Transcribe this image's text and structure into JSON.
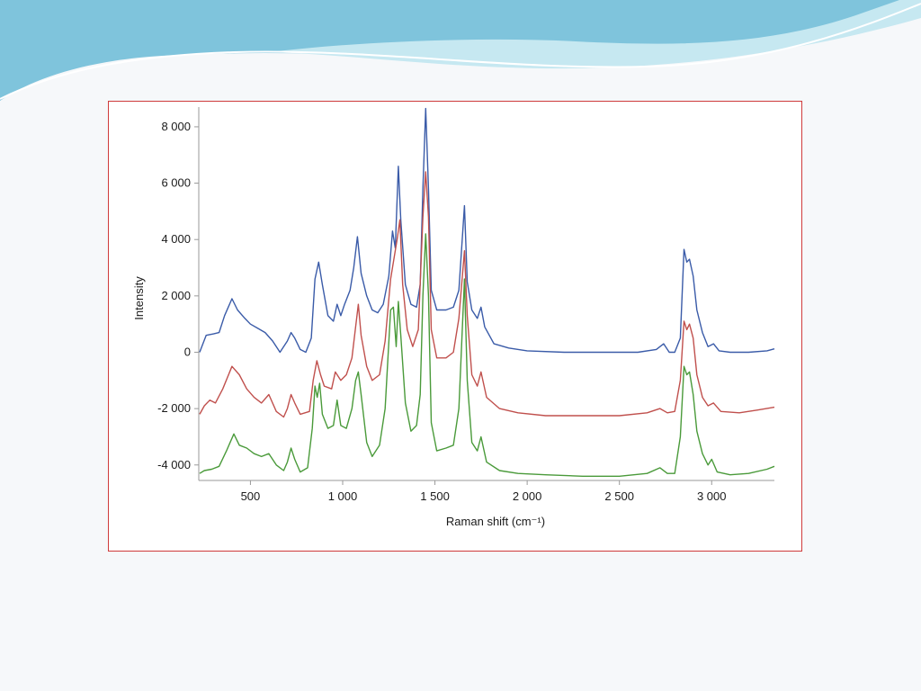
{
  "slide": {
    "colors": {
      "background": "#f6f8fa",
      "wave_dark": "#7fc4dc",
      "wave_light": "#c6e8f1",
      "frame_border": "#cf3b3b"
    }
  },
  "chart_data": {
    "type": "line",
    "title": "",
    "xlabel": "Raman shift (cm⁻¹)",
    "ylabel": "Intensity",
    "xlim": [
      220,
      3340
    ],
    "ylim": [
      -4550,
      8700
    ],
    "x_ticks": [
      500,
      1000,
      1500,
      2000,
      2500,
      3000
    ],
    "x_tick_labels": [
      "500",
      "1 000",
      "1 500",
      "2 000",
      "2 500",
      "3 000"
    ],
    "y_ticks": [
      -4000,
      -2000,
      0,
      2000,
      4000,
      6000,
      8000
    ],
    "y_tick_labels": [
      "-4 000",
      "-2 000",
      "0",
      "2 000",
      "4 000",
      "6 000",
      "8 000"
    ],
    "grid": false,
    "legend": "none",
    "series": [
      {
        "color": "#3a5ba8",
        "points": [
          [
            225,
            0
          ],
          [
            260,
            600
          ],
          [
            300,
            650
          ],
          [
            330,
            700
          ],
          [
            360,
            1300
          ],
          [
            400,
            1900
          ],
          [
            430,
            1500
          ],
          [
            470,
            1200
          ],
          [
            500,
            1000
          ],
          [
            540,
            850
          ],
          [
            580,
            700
          ],
          [
            620,
            400
          ],
          [
            660,
            0
          ],
          [
            700,
            400
          ],
          [
            720,
            700
          ],
          [
            740,
            500
          ],
          [
            770,
            100
          ],
          [
            800,
            0
          ],
          [
            830,
            500
          ],
          [
            850,
            2600
          ],
          [
            870,
            3200
          ],
          [
            890,
            2400
          ],
          [
            920,
            1300
          ],
          [
            950,
            1100
          ],
          [
            970,
            1700
          ],
          [
            990,
            1300
          ],
          [
            1010,
            1700
          ],
          [
            1040,
            2200
          ],
          [
            1060,
            3000
          ],
          [
            1080,
            4100
          ],
          [
            1100,
            2800
          ],
          [
            1130,
            2000
          ],
          [
            1160,
            1500
          ],
          [
            1190,
            1400
          ],
          [
            1220,
            1700
          ],
          [
            1250,
            2700
          ],
          [
            1270,
            4300
          ],
          [
            1285,
            3700
          ],
          [
            1302,
            6600
          ],
          [
            1315,
            4700
          ],
          [
            1340,
            2400
          ],
          [
            1370,
            1700
          ],
          [
            1400,
            1600
          ],
          [
            1420,
            2400
          ],
          [
            1435,
            5800
          ],
          [
            1450,
            8650
          ],
          [
            1465,
            5800
          ],
          [
            1480,
            2200
          ],
          [
            1510,
            1500
          ],
          [
            1560,
            1500
          ],
          [
            1600,
            1600
          ],
          [
            1630,
            2200
          ],
          [
            1660,
            5200
          ],
          [
            1675,
            2500
          ],
          [
            1700,
            1500
          ],
          [
            1730,
            1200
          ],
          [
            1750,
            1600
          ],
          [
            1770,
            900
          ],
          [
            1820,
            300
          ],
          [
            1900,
            150
          ],
          [
            2000,
            50
          ],
          [
            2200,
            0
          ],
          [
            2400,
            0
          ],
          [
            2600,
            0
          ],
          [
            2700,
            100
          ],
          [
            2740,
            300
          ],
          [
            2770,
            0
          ],
          [
            2800,
            0
          ],
          [
            2830,
            500
          ],
          [
            2850,
            3650
          ],
          [
            2865,
            3200
          ],
          [
            2880,
            3300
          ],
          [
            2900,
            2700
          ],
          [
            2920,
            1500
          ],
          [
            2950,
            700
          ],
          [
            2980,
            200
          ],
          [
            3010,
            300
          ],
          [
            3040,
            50
          ],
          [
            3100,
            0
          ],
          [
            3200,
            0
          ],
          [
            3300,
            50
          ],
          [
            3340,
            120
          ]
        ]
      },
      {
        "color": "#c0504d",
        "points": [
          [
            225,
            -2200
          ],
          [
            250,
            -1900
          ],
          [
            280,
            -1700
          ],
          [
            310,
            -1800
          ],
          [
            350,
            -1300
          ],
          [
            400,
            -500
          ],
          [
            440,
            -800
          ],
          [
            480,
            -1300
          ],
          [
            520,
            -1600
          ],
          [
            560,
            -1800
          ],
          [
            600,
            -1500
          ],
          [
            640,
            -2100
          ],
          [
            680,
            -2300
          ],
          [
            700,
            -2000
          ],
          [
            720,
            -1500
          ],
          [
            740,
            -1800
          ],
          [
            770,
            -2200
          ],
          [
            820,
            -2100
          ],
          [
            840,
            -1000
          ],
          [
            860,
            -300
          ],
          [
            880,
            -800
          ],
          [
            900,
            -1200
          ],
          [
            940,
            -1300
          ],
          [
            960,
            -700
          ],
          [
            990,
            -1000
          ],
          [
            1020,
            -800
          ],
          [
            1050,
            -200
          ],
          [
            1070,
            900
          ],
          [
            1085,
            1700
          ],
          [
            1100,
            600
          ],
          [
            1130,
            -500
          ],
          [
            1160,
            -1000
          ],
          [
            1200,
            -800
          ],
          [
            1230,
            400
          ],
          [
            1260,
            2600
          ],
          [
            1275,
            3200
          ],
          [
            1295,
            4000
          ],
          [
            1310,
            4700
          ],
          [
            1325,
            2400
          ],
          [
            1350,
            800
          ],
          [
            1380,
            200
          ],
          [
            1410,
            800
          ],
          [
            1435,
            4800
          ],
          [
            1450,
            6400
          ],
          [
            1465,
            4800
          ],
          [
            1480,
            800
          ],
          [
            1510,
            -200
          ],
          [
            1560,
            -200
          ],
          [
            1600,
            0
          ],
          [
            1630,
            1200
          ],
          [
            1660,
            3600
          ],
          [
            1675,
            1300
          ],
          [
            1700,
            -800
          ],
          [
            1730,
            -1200
          ],
          [
            1750,
            -700
          ],
          [
            1780,
            -1600
          ],
          [
            1850,
            -2000
          ],
          [
            1950,
            -2150
          ],
          [
            2100,
            -2250
          ],
          [
            2300,
            -2250
          ],
          [
            2500,
            -2250
          ],
          [
            2650,
            -2150
          ],
          [
            2720,
            -2000
          ],
          [
            2760,
            -2150
          ],
          [
            2800,
            -2100
          ],
          [
            2830,
            -1000
          ],
          [
            2850,
            1100
          ],
          [
            2865,
            800
          ],
          [
            2880,
            1000
          ],
          [
            2900,
            500
          ],
          [
            2920,
            -800
          ],
          [
            2950,
            -1600
          ],
          [
            2980,
            -1900
          ],
          [
            3010,
            -1800
          ],
          [
            3050,
            -2100
          ],
          [
            3150,
            -2150
          ],
          [
            3250,
            -2050
          ],
          [
            3340,
            -1950
          ]
        ]
      },
      {
        "color": "#4a9a3a",
        "points": [
          [
            225,
            -4300
          ],
          [
            250,
            -4200
          ],
          [
            290,
            -4150
          ],
          [
            330,
            -4050
          ],
          [
            370,
            -3500
          ],
          [
            410,
            -2900
          ],
          [
            440,
            -3300
          ],
          [
            480,
            -3400
          ],
          [
            520,
            -3600
          ],
          [
            560,
            -3700
          ],
          [
            600,
            -3600
          ],
          [
            640,
            -4000
          ],
          [
            680,
            -4200
          ],
          [
            700,
            -3900
          ],
          [
            720,
            -3400
          ],
          [
            740,
            -3800
          ],
          [
            770,
            -4250
          ],
          [
            810,
            -4100
          ],
          [
            835,
            -2700
          ],
          [
            850,
            -1200
          ],
          [
            862,
            -1600
          ],
          [
            875,
            -1100
          ],
          [
            890,
            -2200
          ],
          [
            920,
            -2700
          ],
          [
            950,
            -2600
          ],
          [
            970,
            -1700
          ],
          [
            990,
            -2600
          ],
          [
            1020,
            -2700
          ],
          [
            1050,
            -2000
          ],
          [
            1070,
            -1000
          ],
          [
            1085,
            -700
          ],
          [
            1100,
            -1500
          ],
          [
            1130,
            -3200
          ],
          [
            1160,
            -3700
          ],
          [
            1200,
            -3300
          ],
          [
            1230,
            -2000
          ],
          [
            1260,
            1500
          ],
          [
            1275,
            1600
          ],
          [
            1290,
            200
          ],
          [
            1302,
            1800
          ],
          [
            1315,
            600
          ],
          [
            1340,
            -1800
          ],
          [
            1370,
            -2800
          ],
          [
            1400,
            -2600
          ],
          [
            1420,
            -1500
          ],
          [
            1435,
            2000
          ],
          [
            1450,
            4200
          ],
          [
            1465,
            2000
          ],
          [
            1480,
            -2500
          ],
          [
            1510,
            -3500
          ],
          [
            1560,
            -3400
          ],
          [
            1600,
            -3300
          ],
          [
            1630,
            -2000
          ],
          [
            1660,
            2600
          ],
          [
            1675,
            -1000
          ],
          [
            1700,
            -3200
          ],
          [
            1730,
            -3500
          ],
          [
            1750,
            -3000
          ],
          [
            1780,
            -3900
          ],
          [
            1850,
            -4200
          ],
          [
            1950,
            -4300
          ],
          [
            2100,
            -4350
          ],
          [
            2300,
            -4400
          ],
          [
            2500,
            -4400
          ],
          [
            2650,
            -4300
          ],
          [
            2720,
            -4100
          ],
          [
            2760,
            -4300
          ],
          [
            2800,
            -4300
          ],
          [
            2830,
            -3000
          ],
          [
            2850,
            -500
          ],
          [
            2865,
            -800
          ],
          [
            2880,
            -700
          ],
          [
            2900,
            -1500
          ],
          [
            2920,
            -2800
          ],
          [
            2950,
            -3600
          ],
          [
            2980,
            -4000
          ],
          [
            3000,
            -3800
          ],
          [
            3030,
            -4250
          ],
          [
            3100,
            -4350
          ],
          [
            3200,
            -4300
          ],
          [
            3300,
            -4150
          ],
          [
            3340,
            -4050
          ]
        ]
      }
    ]
  }
}
